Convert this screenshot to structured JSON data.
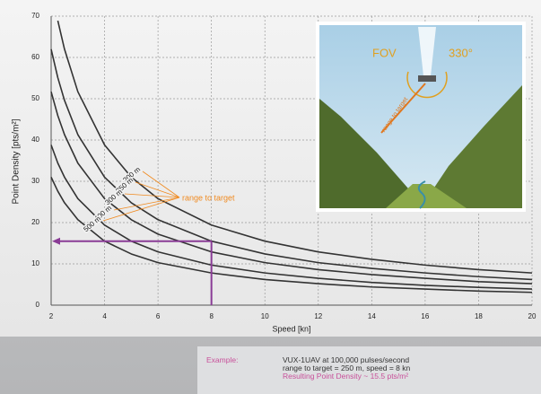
{
  "chart_data": {
    "type": "line",
    "x_label": "Speed [kn]",
    "y_label": "Point Density [pts/m²]",
    "x": [
      2,
      2.25,
      2.5,
      3,
      4,
      5,
      6,
      8,
      10,
      12,
      14,
      16,
      18,
      20
    ],
    "series": [
      {
        "name": "200 m",
        "color": "#333333",
        "values": [
          null,
          68.9,
          62.0,
          51.7,
          38.8,
          31.0,
          25.8,
          19.4,
          15.5,
          12.9,
          11.1,
          9.7,
          8.6,
          7.8
        ]
      },
      {
        "name": "250 m",
        "color": "#333333",
        "values": [
          62.0,
          55.1,
          49.6,
          41.3,
          31.0,
          24.8,
          20.7,
          15.5,
          12.4,
          10.3,
          8.9,
          7.8,
          6.9,
          6.2
        ]
      },
      {
        "name": "300 m",
        "color": "#333333",
        "values": [
          51.7,
          45.9,
          41.3,
          34.4,
          25.8,
          20.7,
          17.2,
          12.9,
          10.3,
          8.6,
          7.4,
          6.5,
          5.7,
          5.2
        ]
      },
      {
        "name": "400 m",
        "color": "#333333",
        "values": [
          38.8,
          34.4,
          31.0,
          25.8,
          19.4,
          15.5,
          12.9,
          9.7,
          7.8,
          6.5,
          5.5,
          4.8,
          4.3,
          3.9
        ]
      },
      {
        "name": "500 m",
        "color": "#333333",
        "values": [
          31.0,
          27.6,
          24.8,
          20.7,
          15.5,
          12.4,
          10.3,
          7.8,
          6.2,
          5.2,
          4.4,
          3.9,
          3.4,
          3.1
        ]
      }
    ],
    "curve_annotation": "range to target",
    "highlight": {
      "x": 8,
      "y": 15.5,
      "color": "#8a3c96"
    },
    "xlim": [
      2,
      20
    ],
    "xticks": [
      2,
      4,
      6,
      8,
      10,
      12,
      14,
      16,
      18,
      20
    ],
    "ylim": [
      0,
      70
    ],
    "yticks": [
      0,
      10,
      20,
      30,
      40,
      50,
      60,
      70
    ],
    "grid": true,
    "inset": {
      "fov": "FOV",
      "angle": "330°",
      "range": "range to target"
    }
  },
  "example": {
    "label": "Example:",
    "lines": [
      "VUX-1UAV at 100,000 pulses/second",
      "range to target = 250 m, speed = 8 kn",
      "Resulting Point Density ~ 15.5 pts/m²"
    ]
  }
}
